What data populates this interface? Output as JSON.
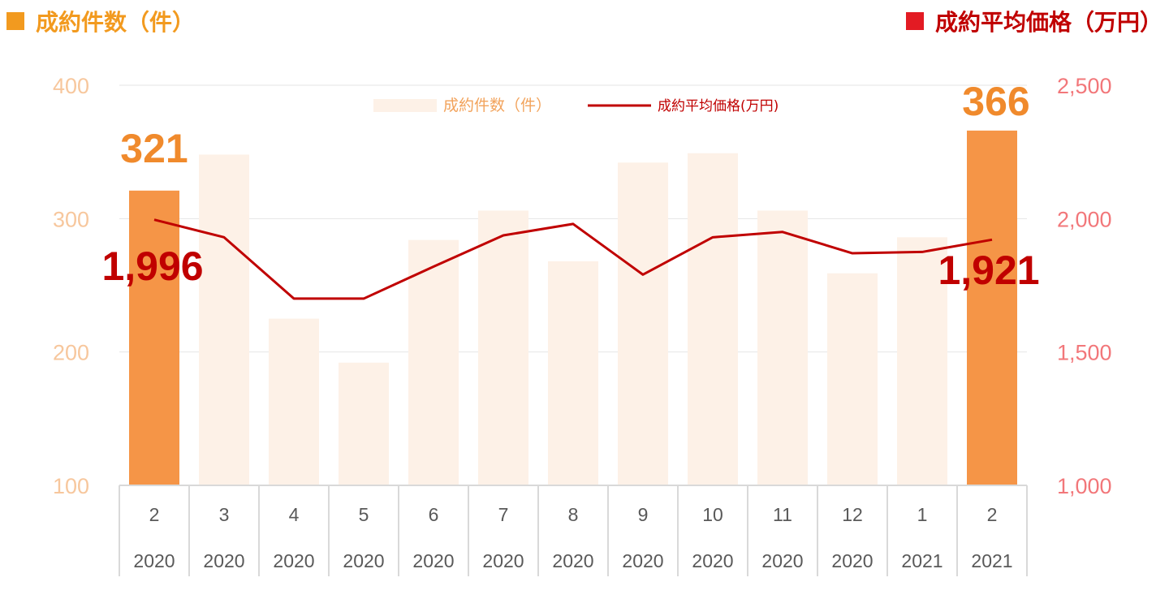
{
  "header": {
    "left_title": "成約件数（件）",
    "right_title": "成約平均価格（万円）"
  },
  "colors": {
    "bar_highlight": "#f59547",
    "bar_faded": "#fdf1e7",
    "line": "#c00000",
    "left_axis_text": "#f7c79d",
    "right_axis_text": "#f2777a",
    "title_left": "#f29a1f",
    "title_right": "#c00000"
  },
  "chart_data": {
    "type": "bar+line",
    "categories": [
      {
        "month": "2",
        "year": "2020"
      },
      {
        "month": "3",
        "year": "2020"
      },
      {
        "month": "4",
        "year": "2020"
      },
      {
        "month": "5",
        "year": "2020"
      },
      {
        "month": "6",
        "year": "2020"
      },
      {
        "month": "7",
        "year": "2020"
      },
      {
        "month": "8",
        "year": "2020"
      },
      {
        "month": "9",
        "year": "2020"
      },
      {
        "month": "10",
        "year": "2020"
      },
      {
        "month": "11",
        "year": "2020"
      },
      {
        "month": "12",
        "year": "2020"
      },
      {
        "month": "1",
        "year": "2021"
      },
      {
        "month": "2",
        "year": "2021"
      }
    ],
    "series": [
      {
        "name": "成約件数（件）",
        "type": "bar",
        "axis": "left",
        "values": [
          321,
          348,
          225,
          192,
          284,
          306,
          268,
          342,
          349,
          306,
          259,
          286,
          366
        ],
        "highlight": [
          true,
          false,
          false,
          false,
          false,
          false,
          false,
          false,
          false,
          false,
          false,
          false,
          true
        ]
      },
      {
        "name": "成約平均価格(万円)",
        "type": "line",
        "axis": "right",
        "values": [
          1996,
          1930,
          1700,
          1700,
          1820,
          1937,
          1980,
          1790,
          1930,
          1950,
          1870,
          1875,
          1921
        ]
      }
    ],
    "left_axis": {
      "min": 100,
      "max": 400,
      "ticks": [
        "100",
        "200",
        "300",
        "400"
      ],
      "tick_values": [
        100,
        200,
        300,
        400
      ]
    },
    "right_axis": {
      "min": 1000,
      "max": 2500,
      "ticks": [
        "1,000",
        "1,500",
        "2,000",
        "2,500"
      ],
      "tick_values": [
        1000,
        1500,
        2000,
        2500
      ]
    },
    "annotations": {
      "first_bar": "321",
      "last_bar": "366",
      "first_line": "1,996",
      "last_line": "1,921"
    },
    "legend": {
      "position": "top-center"
    },
    "grid": true
  }
}
